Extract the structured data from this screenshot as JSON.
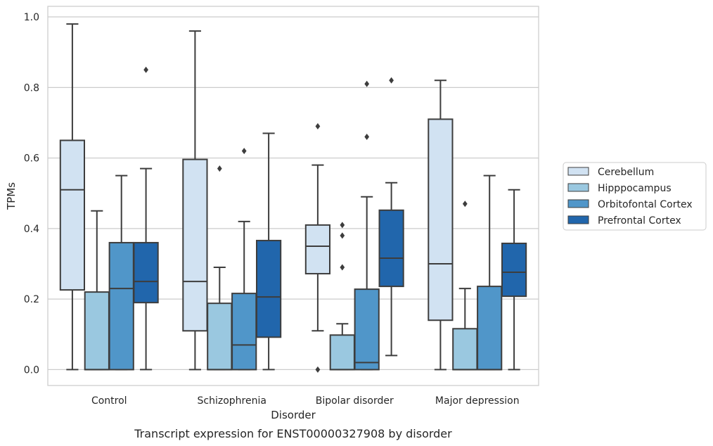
{
  "chart_data": {
    "type": "box",
    "title": "",
    "caption": "Transcript expression for ENST00000327908 by disorder",
    "xlabel": "Disorder",
    "ylabel": "TPMs",
    "ylim": [
      -0.045,
      1.03
    ],
    "yticks": [
      "0.0",
      "0.2",
      "0.4",
      "0.6",
      "0.8",
      "1.0"
    ],
    "grid": true,
    "legend_position": "right",
    "categories": [
      "Control",
      "Schizophrenia",
      "Bipolar disorder",
      "Major depression"
    ],
    "series": [
      {
        "name": "Cerebellum",
        "color": "#d1e2f2",
        "boxes": [
          {
            "whisker_low": 0.0,
            "q1": 0.226,
            "median": 0.51,
            "q3": 0.65,
            "whisker_high": 0.98,
            "outliers": []
          },
          {
            "whisker_low": 0.0,
            "q1": 0.11,
            "median": 0.25,
            "q3": 0.596,
            "whisker_high": 0.96,
            "outliers": []
          },
          {
            "whisker_low": 0.11,
            "q1": 0.272,
            "median": 0.35,
            "q3": 0.41,
            "whisker_high": 0.58,
            "outliers": [
              0.0,
              0.69
            ]
          },
          {
            "whisker_low": 0.0,
            "q1": 0.14,
            "median": 0.3,
            "q3": 0.71,
            "whisker_high": 0.82,
            "outliers": []
          }
        ]
      },
      {
        "name": "Hipppocampus",
        "color": "#9ac8e0",
        "boxes": [
          {
            "whisker_low": 0.0,
            "q1": 0.0,
            "median": 0.0,
            "q3": 0.22,
            "whisker_high": 0.45,
            "outliers": []
          },
          {
            "whisker_low": 0.0,
            "q1": 0.0,
            "median": 0.0,
            "q3": 0.188,
            "whisker_high": 0.29,
            "outliers": [
              0.57
            ]
          },
          {
            "whisker_low": 0.0,
            "q1": 0.0,
            "median": 0.0,
            "q3": 0.098,
            "whisker_high": 0.13,
            "outliers": [
              0.29,
              0.38,
              0.41
            ]
          },
          {
            "whisker_low": 0.0,
            "q1": 0.0,
            "median": 0.0,
            "q3": 0.116,
            "whisker_high": 0.23,
            "outliers": [
              0.47
            ]
          }
        ]
      },
      {
        "name": "Orbitofontal Cortex",
        "color": "#5096c9",
        "boxes": [
          {
            "whisker_low": 0.0,
            "q1": 0.0,
            "median": 0.23,
            "q3": 0.36,
            "whisker_high": 0.55,
            "outliers": []
          },
          {
            "whisker_low": 0.0,
            "q1": 0.0,
            "median": 0.07,
            "q3": 0.216,
            "whisker_high": 0.42,
            "outliers": [
              0.62
            ]
          },
          {
            "whisker_low": 0.0,
            "q1": 0.0,
            "median": 0.02,
            "q3": 0.228,
            "whisker_high": 0.49,
            "outliers": [
              0.66,
              0.81
            ]
          },
          {
            "whisker_low": 0.0,
            "q1": 0.0,
            "median": 0.0,
            "q3": 0.236,
            "whisker_high": 0.55,
            "outliers": []
          }
        ]
      },
      {
        "name": "Prefrontal Cortex",
        "color": "#2166ac",
        "boxes": [
          {
            "whisker_low": 0.0,
            "q1": 0.19,
            "median": 0.25,
            "q3": 0.36,
            "whisker_high": 0.57,
            "outliers": [
              0.85
            ]
          },
          {
            "whisker_low": 0.0,
            "q1": 0.092,
            "median": 0.206,
            "q3": 0.366,
            "whisker_high": 0.67,
            "outliers": []
          },
          {
            "whisker_low": 0.04,
            "q1": 0.236,
            "median": 0.316,
            "q3": 0.452,
            "whisker_high": 0.53,
            "outliers": [
              0.82
            ]
          },
          {
            "whisker_low": 0.0,
            "q1": 0.208,
            "median": 0.276,
            "q3": 0.358,
            "whisker_high": 0.51,
            "outliers": []
          }
        ]
      }
    ]
  }
}
